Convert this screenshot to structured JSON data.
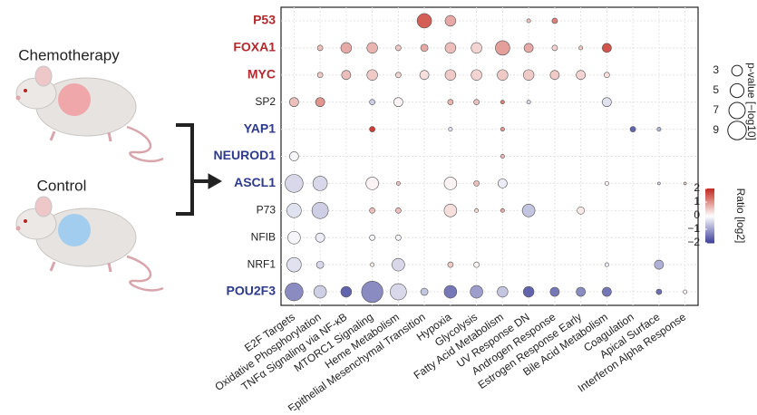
{
  "labels": [
    "Chemotherapy",
    "Control"
  ],
  "chart_data": {
    "type": "dot",
    "categories": [
      "E2F Targets",
      "Oxidative Phosphorylation",
      "TNFα Signaling via NF-κB",
      "MTORC1 Signaling",
      "Heme Metabolism",
      "Epithelial Mesenchymal Transition",
      "Hypoxia",
      "Glycolysis",
      "Fatty Acid Metabolism",
      "UV Response DN",
      "Androgen Response",
      "Estrogen Response Early",
      "Bile Acid Metabolism",
      "Coagulation",
      "Apical Surface",
      "Interferon Alpha Response"
    ],
    "series": [
      {
        "name": "P53",
        "color": "#b22a2e",
        "values": [
          null,
          null,
          null,
          null,
          null,
          5.5,
          3,
          null,
          null,
          0.4,
          0.8,
          null,
          null,
          null,
          null,
          null
        ],
        "ratios": [
          null,
          null,
          null,
          null,
          null,
          1.5,
          0.8,
          null,
          null,
          0.6,
          1.2,
          null,
          null,
          null,
          null,
          null
        ]
      },
      {
        "name": "FOXA1",
        "color": "#b22a2e",
        "values": [
          null,
          0.8,
          3,
          3,
          0.8,
          1.4,
          3,
          3,
          5.5,
          2.2,
          0.8,
          0.4,
          2.2,
          null,
          null,
          null
        ],
        "ratios": [
          null,
          0.6,
          0.8,
          0.7,
          0.5,
          0.8,
          0.6,
          0.4,
          0.9,
          0.8,
          0.4,
          0.5,
          1.6,
          null,
          null,
          null
        ]
      },
      {
        "name": "MYC",
        "color": "#b22a2e",
        "values": [
          null,
          0.8,
          2.2,
          3,
          0.8,
          2.2,
          3,
          3,
          3,
          3,
          2.2,
          2.2,
          0.8,
          null,
          null,
          null
        ],
        "ratios": [
          null,
          0.5,
          0.6,
          0.5,
          0.4,
          0.3,
          0.5,
          0.4,
          0.5,
          0.5,
          0.5,
          0.4,
          0.3,
          null,
          null,
          null
        ]
      },
      {
        "name": "SP2",
        "color": "#222222",
        "values": [
          2.2,
          2.2,
          null,
          0.8,
          2.2,
          null,
          0.8,
          0.8,
          0.4,
          0.4,
          null,
          null,
          2.2,
          null,
          null,
          null
        ],
        "ratios": [
          0.6,
          1.0,
          null,
          -0.5,
          0.1,
          null,
          0.7,
          0.6,
          1.2,
          -0.4,
          null,
          null,
          -0.3,
          null,
          null,
          null
        ]
      },
      {
        "name": "YAP1",
        "color": "#2e3a8c",
        "values": [
          null,
          null,
          null,
          0.8,
          null,
          null,
          0.4,
          null,
          0.4,
          null,
          null,
          null,
          null,
          0.8,
          0.4,
          null
        ],
        "ratios": [
          null,
          null,
          null,
          1.8,
          null,
          null,
          -0.3,
          null,
          1.0,
          null,
          null,
          null,
          null,
          -1.6,
          -0.8,
          null
        ]
      },
      {
        "name": "NEUROD1",
        "color": "#2e3a8c",
        "values": [
          2.2,
          null,
          null,
          null,
          null,
          null,
          null,
          null,
          0.4,
          null,
          null,
          null,
          null,
          null,
          null,
          null
        ],
        "ratios": [
          -0.1,
          null,
          null,
          null,
          null,
          null,
          null,
          null,
          0.7,
          null,
          null,
          null,
          null,
          null,
          null,
          null
        ]
      },
      {
        "name": "ASCL1",
        "color": "#2e3a8c",
        "values": [
          8.5,
          5.5,
          null,
          4.2,
          0.4,
          null,
          4.2,
          0.8,
          2.2,
          null,
          null,
          null,
          0.4,
          null,
          0.2,
          0.2
        ],
        "ratios": [
          -0.4,
          -0.4,
          null,
          0.1,
          0.6,
          null,
          0.1,
          0.6,
          -0.2,
          null,
          null,
          null,
          0.1,
          null,
          -0.3,
          0.4
        ]
      },
      {
        "name": "P73",
        "color": "#222222",
        "values": [
          5.5,
          7,
          null,
          0.8,
          0.8,
          null,
          4.2,
          0.4,
          0.4,
          4.2,
          null,
          1.4,
          null,
          null,
          null,
          null
        ],
        "ratios": [
          -0.3,
          -0.5,
          null,
          0.6,
          0.6,
          null,
          0.3,
          0.4,
          0.8,
          -0.6,
          null,
          0.2,
          null,
          null,
          null,
          null
        ]
      },
      {
        "name": "NFIB",
        "color": "#222222",
        "values": [
          4.2,
          2.2,
          null,
          0.8,
          0.8,
          null,
          null,
          null,
          null,
          null,
          null,
          null,
          null,
          null,
          null,
          null
        ],
        "ratios": [
          -0.1,
          -0.2,
          null,
          -0.1,
          -0.1,
          null,
          null,
          null,
          null,
          null,
          null,
          null,
          null,
          null,
          null,
          null
        ]
      },
      {
        "name": "NRF1",
        "color": "#222222",
        "values": [
          5.5,
          1.4,
          null,
          0.4,
          4.2,
          null,
          0.8,
          0.8,
          null,
          null,
          null,
          null,
          0.4,
          null,
          2.2,
          null
        ],
        "ratios": [
          -0.3,
          -0.4,
          null,
          0.2,
          -0.4,
          null,
          0.5,
          0.1,
          null,
          null,
          null,
          null,
          -0.2,
          null,
          -0.8,
          null
        ]
      },
      {
        "name": "POU2F3",
        "color": "#2e3a8c",
        "values": [
          8.5,
          4.2,
          3,
          12,
          7,
          1.4,
          4.2,
          4.2,
          3,
          3,
          2.2,
          2.2,
          2.2,
          null,
          0.8,
          0.4
        ],
        "ratios": [
          -1.2,
          -0.5,
          -1.6,
          -1.2,
          -0.4,
          -0.6,
          -1.4,
          -1.0,
          -0.6,
          -1.6,
          -1.4,
          -1.2,
          -1.4,
          null,
          -1.5,
          0.1
        ]
      }
    ],
    "bold_names": [
      "P53",
      "FOXA1",
      "MYC",
      "YAP1",
      "NEUROD1",
      "ASCL1",
      "POU2F3"
    ],
    "grid": true,
    "size_legend": {
      "title": "p-value [−log10]",
      "values": [
        3,
        5,
        7,
        9
      ]
    },
    "color_legend": {
      "title": "Ratio [log2]",
      "lim": [
        -2,
        2
      ],
      "ticks": [
        2,
        1,
        0,
        {
          "value": -1,
          "label": "−1"
        },
        {
          "value": -2,
          "label": "−2"
        }
      ],
      "colors": [
        "#3a3d98",
        "#ffffff",
        "#c4291f"
      ]
    }
  }
}
